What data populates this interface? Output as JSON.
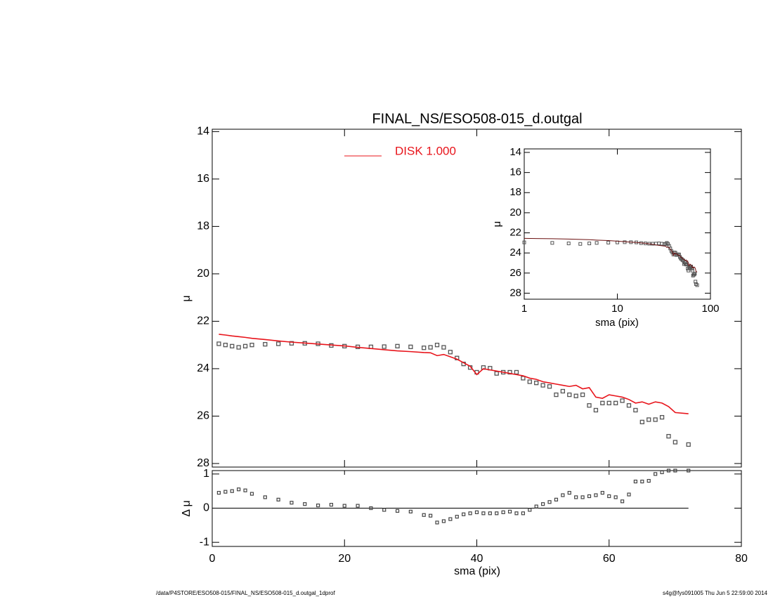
{
  "chart_data": {
    "type": "scatter",
    "title": "FINAL_NS/ESO508-015_d.outgal",
    "xlabel": "sma (pix)",
    "ylabel": "μ",
    "xlim": [
      0,
      80
    ],
    "xticks": [
      0,
      20,
      40,
      60,
      80
    ],
    "ylim": [
      28.15,
      13.9
    ],
    "yticks": [
      14,
      16,
      18,
      20,
      22,
      24,
      26,
      28
    ],
    "x": [
      1,
      2,
      3,
      4,
      5,
      6,
      8,
      10,
      12,
      14,
      16,
      18,
      20,
      22,
      24,
      26,
      28,
      30,
      32,
      33,
      34,
      35,
      36,
      37,
      38,
      39,
      40,
      41,
      42,
      43,
      44,
      45,
      46,
      47,
      48,
      49,
      50,
      51,
      52,
      53,
      54,
      55,
      56,
      57,
      58,
      59,
      60,
      61,
      62,
      63,
      64,
      65,
      66,
      67,
      68,
      69,
      70,
      72
    ],
    "series": [
      {
        "color": "#555555",
        "values": [
          22.95,
          23.0,
          23.05,
          23.1,
          23.05,
          23.0,
          22.97,
          22.95,
          22.93,
          22.93,
          22.95,
          23.02,
          23.05,
          23.08,
          23.08,
          23.07,
          23.05,
          23.08,
          23.12,
          23.1,
          23.0,
          23.1,
          23.3,
          23.55,
          23.8,
          23.95,
          24.15,
          23.95,
          23.98,
          24.2,
          24.15,
          24.15,
          24.15,
          24.4,
          24.55,
          24.6,
          24.7,
          24.75,
          25.1,
          24.95,
          25.1,
          25.15,
          25.1,
          25.55,
          25.75,
          25.45,
          25.45,
          25.45,
          25.35,
          25.55,
          25.75,
          26.25,
          26.15,
          26.15,
          26.05,
          26.85,
          27.1,
          27.2
        ]
      },
      {
        "name": "DISK  1.000",
        "color": "#e8141b",
        "values": [
          22.55,
          22.58,
          22.62,
          22.65,
          22.68,
          22.72,
          22.77,
          22.83,
          22.88,
          22.92,
          22.96,
          23.0,
          23.04,
          23.1,
          23.15,
          23.2,
          23.25,
          23.28,
          23.32,
          23.33,
          23.45,
          23.4,
          23.5,
          23.6,
          23.75,
          23.9,
          24.25,
          24.0,
          24.05,
          24.1,
          24.15,
          24.2,
          24.25,
          24.3,
          24.4,
          24.45,
          24.55,
          24.6,
          24.65,
          24.7,
          24.75,
          24.7,
          24.85,
          24.8,
          25.2,
          25.25,
          25.1,
          25.15,
          25.2,
          25.3,
          25.45,
          25.4,
          25.5,
          25.4,
          25.45,
          25.6,
          25.85,
          25.9
        ]
      }
    ],
    "residual": {
      "ylabel": "Δ μ",
      "ylim": [
        -1.12,
        1.1
      ],
      "yticks": [
        -1,
        0,
        1
      ],
      "values": [
        0.45,
        0.48,
        0.5,
        0.55,
        0.52,
        0.42,
        0.32,
        0.25,
        0.16,
        0.12,
        0.08,
        0.1,
        0.07,
        0.07,
        0.0,
        -0.05,
        -0.08,
        -0.1,
        -0.2,
        -0.22,
        -0.42,
        -0.38,
        -0.32,
        -0.25,
        -0.18,
        -0.15,
        -0.12,
        -0.15,
        -0.15,
        -0.15,
        -0.12,
        -0.1,
        -0.15,
        -0.15,
        -0.05,
        0.05,
        0.12,
        0.18,
        0.25,
        0.38,
        0.45,
        0.32,
        0.32,
        0.35,
        0.38,
        0.45,
        0.35,
        0.32,
        0.2,
        0.4,
        0.78,
        0.78,
        0.8,
        1.0,
        1.05,
        1.1,
        1.1,
        1.1
      ]
    },
    "inset": {
      "xlabel": "sma (pix)",
      "ylabel": "μ",
      "xlog": true,
      "xlim": [
        1,
        100
      ],
      "xticks": [
        1,
        10,
        100
      ],
      "ylim": [
        28.6,
        13.65
      ],
      "yticks": [
        14,
        16,
        18,
        20,
        22,
        24,
        26,
        28
      ]
    },
    "footer_left": "/data/P4STORE/ESO508-015/FINAL_NS/ESO508-015_d.outgal_1dprof",
    "footer_right": "s4g@fys091005  Thu Jun  5 22:59:00 2014"
  }
}
